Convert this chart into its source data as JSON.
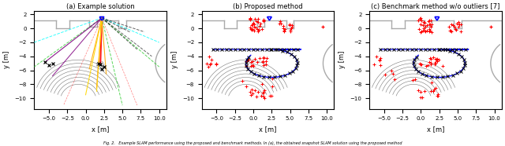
{
  "subplot_titles": [
    "(a) Example solution",
    "(b) Proposed method",
    "(c) Benchmark method w/o outliers [7]"
  ],
  "xlim": [
    -7,
    11
  ],
  "ylim": [
    -11.5,
    2.5
  ],
  "xlabel": "x [m]",
  "ylabel": "y [m]",
  "caption": "Fig. 2.   Example SLAM performance using the proposed and benchmark methods. In (a), the obtained snapshot SLAM solution using the proposed method",
  "background_color": "#ffffff",
  "wall_color": "#aaaaaa",
  "wall_lw": 1.0,
  "arc_color": "#555555"
}
